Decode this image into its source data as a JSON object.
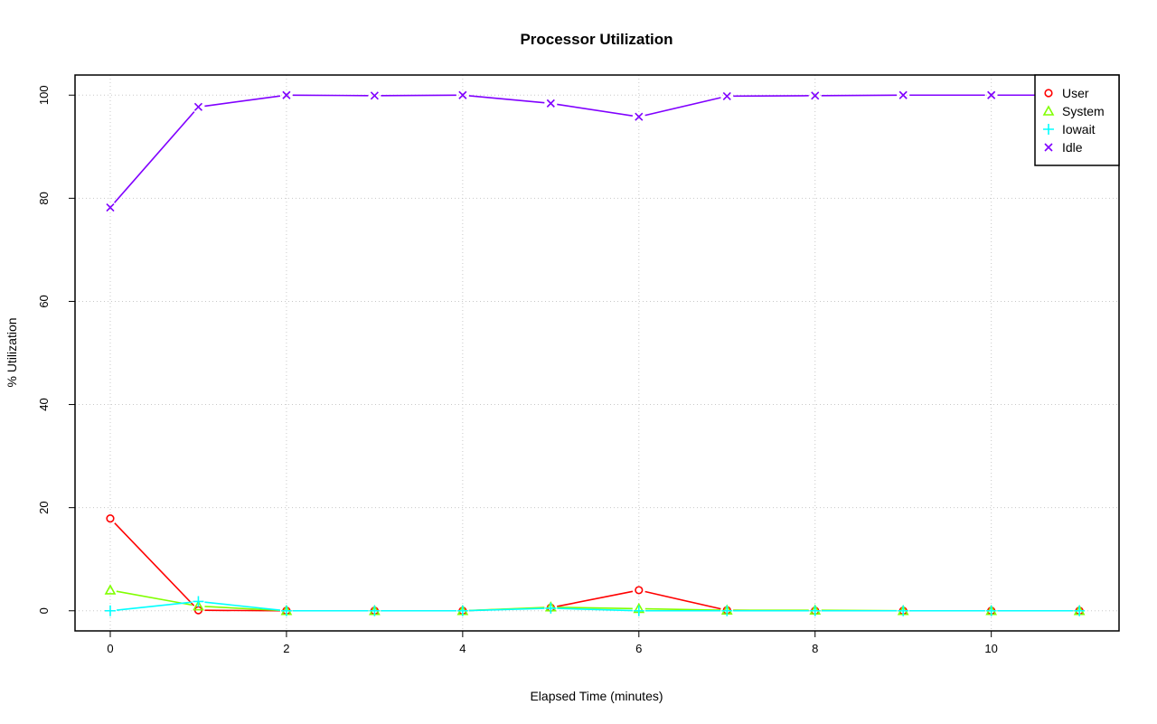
{
  "chart_data": {
    "type": "line",
    "title": "Processor Utilization",
    "xlabel": "Elapsed Time (minutes)",
    "ylabel": "% Utilization",
    "xlim": [
      -0.4,
      11.45
    ],
    "ylim": [
      -3.9,
      103.9
    ],
    "xticks": [
      0,
      2,
      4,
      6,
      8,
      10
    ],
    "yticks": [
      0,
      20,
      40,
      60,
      80,
      100
    ],
    "grid": true,
    "legend_position": "top-right",
    "x": [
      0,
      1,
      2,
      3,
      4,
      5,
      6,
      7,
      8,
      9,
      10,
      11
    ],
    "series": [
      {
        "name": "User",
        "color": "#ff0000",
        "marker": "circle",
        "values": [
          17.9,
          0.1,
          0,
          0,
          0,
          0.6,
          4.0,
          0.1,
          0,
          0,
          0,
          0
        ]
      },
      {
        "name": "System",
        "color": "#80ff00",
        "marker": "triangle",
        "values": [
          4.0,
          0.9,
          0,
          0,
          0,
          0.7,
          0.4,
          0.1,
          0.1,
          0,
          0,
          0
        ]
      },
      {
        "name": "Iowait",
        "color": "#00ffff",
        "marker": "plus",
        "values": [
          0,
          1.8,
          0,
          0,
          0,
          0.5,
          0,
          0,
          0,
          0,
          0,
          0
        ]
      },
      {
        "name": "Idle",
        "color": "#8000ff",
        "marker": "cross",
        "values": [
          78.2,
          97.7,
          100,
          99.9,
          100,
          98.4,
          95.8,
          99.8,
          99.9,
          100,
          100,
          100
        ]
      }
    ]
  }
}
